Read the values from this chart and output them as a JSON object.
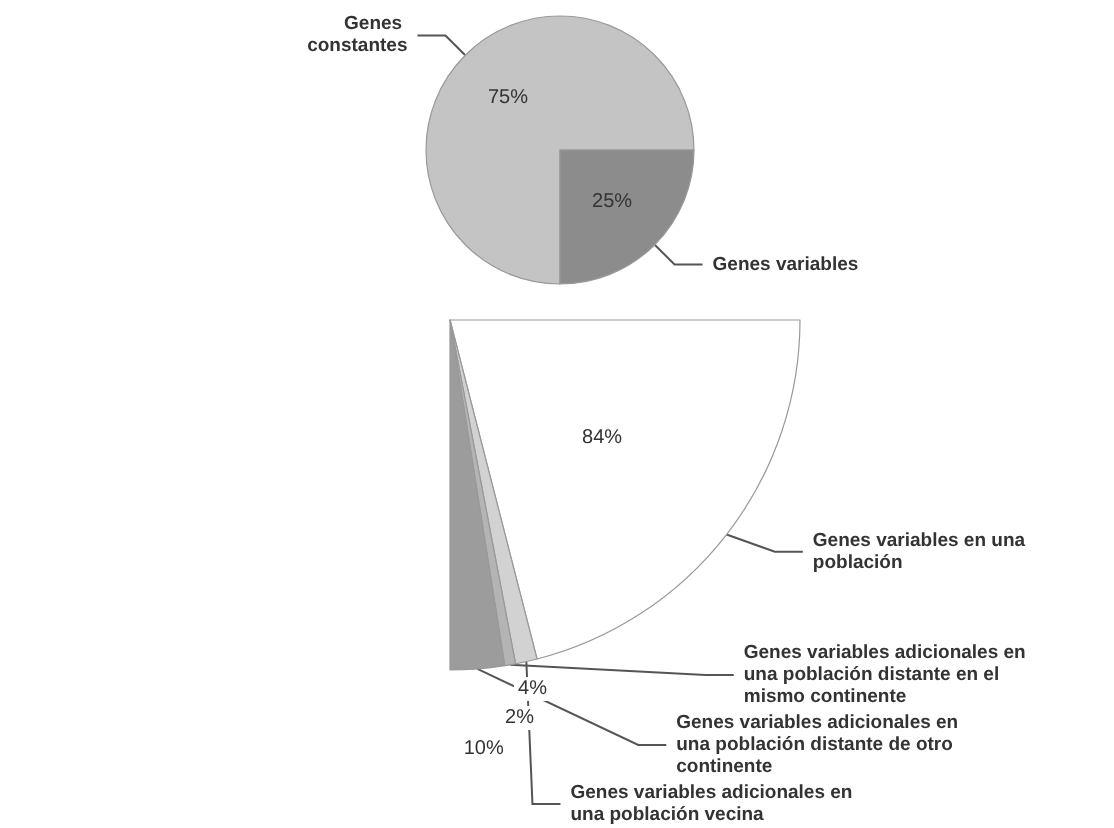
{
  "chart_data": [
    {
      "type": "pie",
      "categories": [
        "Genes constantes",
        "Genes variables"
      ],
      "values": [
        75,
        25
      ],
      "value_labels": [
        "75%",
        "25%"
      ],
      "colors": [
        "#c4c4c4",
        "#8c8c8c"
      ],
      "legend": false
    },
    {
      "type": "pie",
      "categories": [
        "Genes variables en una población",
        "Genes variables adicionales en una población vecina",
        "Genes variables adicionales en una población distante en el mismo continente",
        "Genes variables adicionales en una población distante de otro continente"
      ],
      "values": [
        84,
        4,
        2,
        10
      ],
      "value_labels": [
        "84%",
        "4%",
        "2%",
        "10%"
      ],
      "colors": [
        "#ffffff",
        "#d2d2d2",
        "#b4b4b4",
        "#9c9c9c"
      ],
      "legend": false
    }
  ]
}
